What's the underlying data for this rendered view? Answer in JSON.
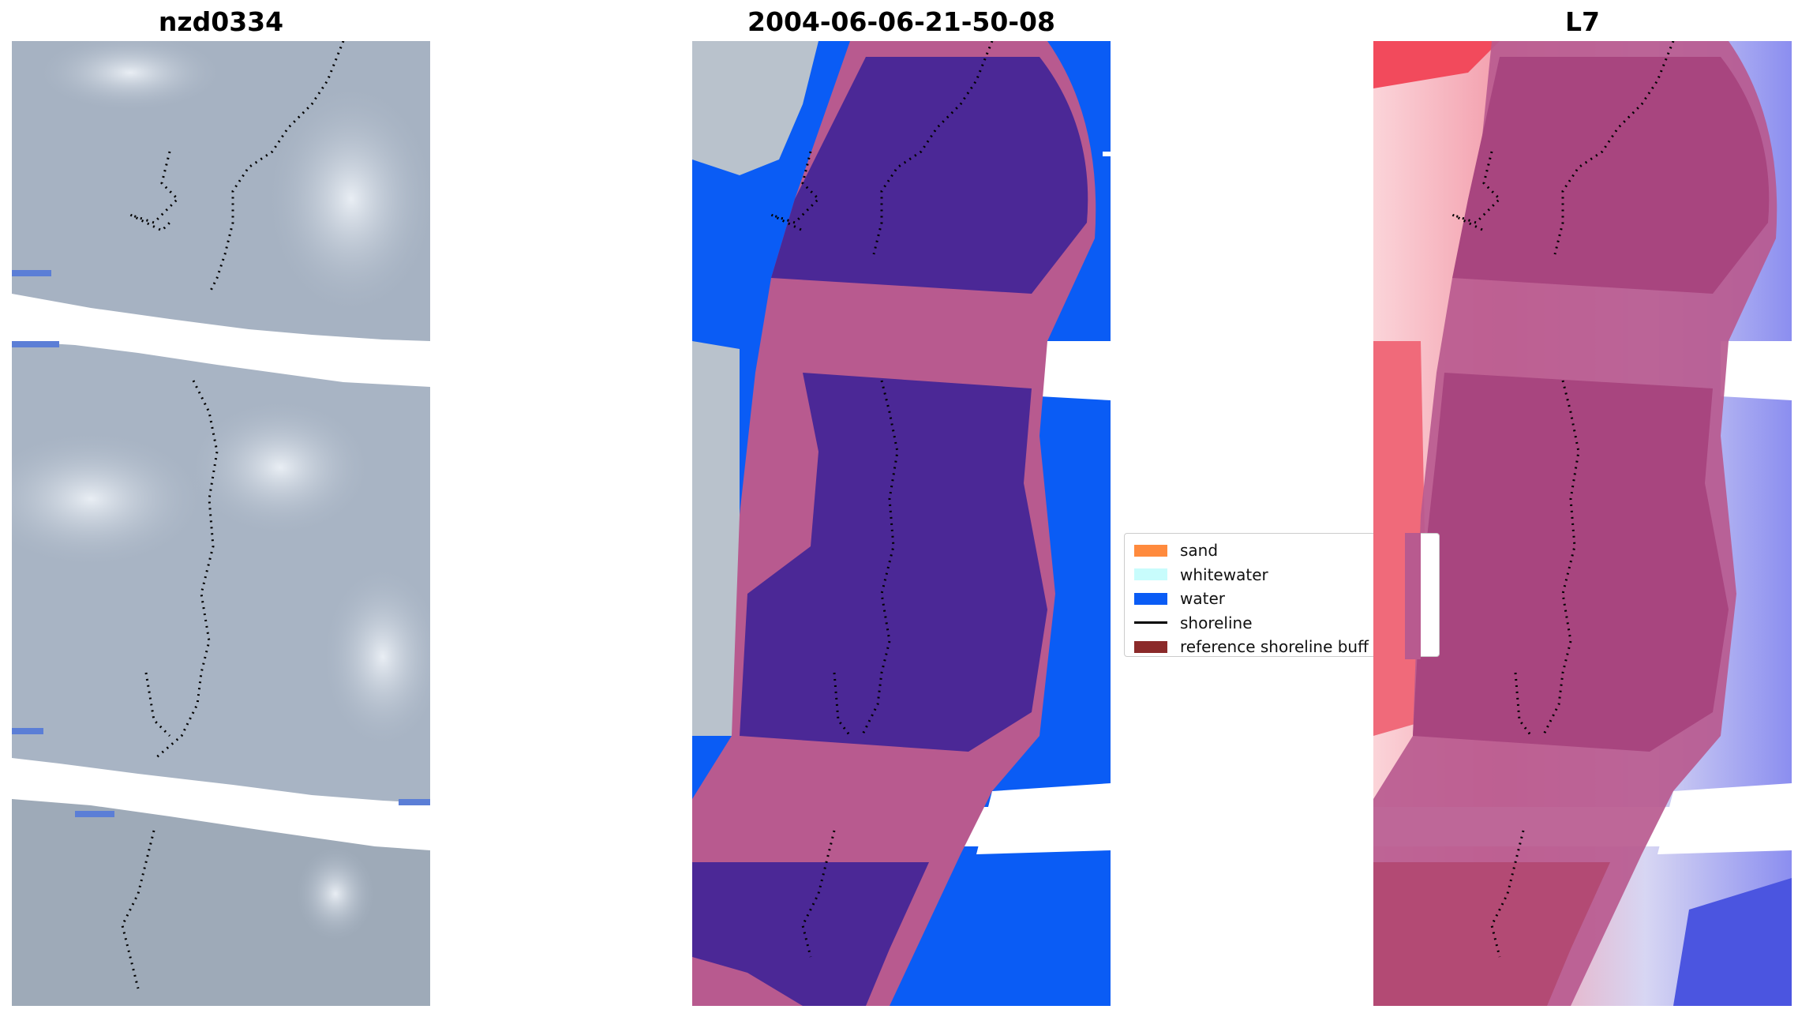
{
  "panels": [
    {
      "title": "nzd0334"
    },
    {
      "title": "2004-06-06-21-50-08"
    },
    {
      "title": "L7"
    }
  ],
  "legend": {
    "items": [
      {
        "label": "sand",
        "color": "#ff8a3d",
        "kind": "patch"
      },
      {
        "label": "whitewater",
        "color": "#c8fcfc",
        "kind": "patch"
      },
      {
        "label": "water",
        "color": "#0a5cf5",
        "kind": "patch"
      },
      {
        "label": "shoreline",
        "color": "#000000",
        "kind": "line"
      },
      {
        "label": "reference shoreline buff",
        "color": "#8b2a2a",
        "kind": "patch"
      }
    ]
  },
  "colors": {
    "rgb_base": "#a6b2c2",
    "water": "#0a5cf5",
    "buffer_overlay": "#b85a8f",
    "dark_class": "#4b2896",
    "index_red": "#d9365a",
    "index_blue": "#5b5de8"
  }
}
